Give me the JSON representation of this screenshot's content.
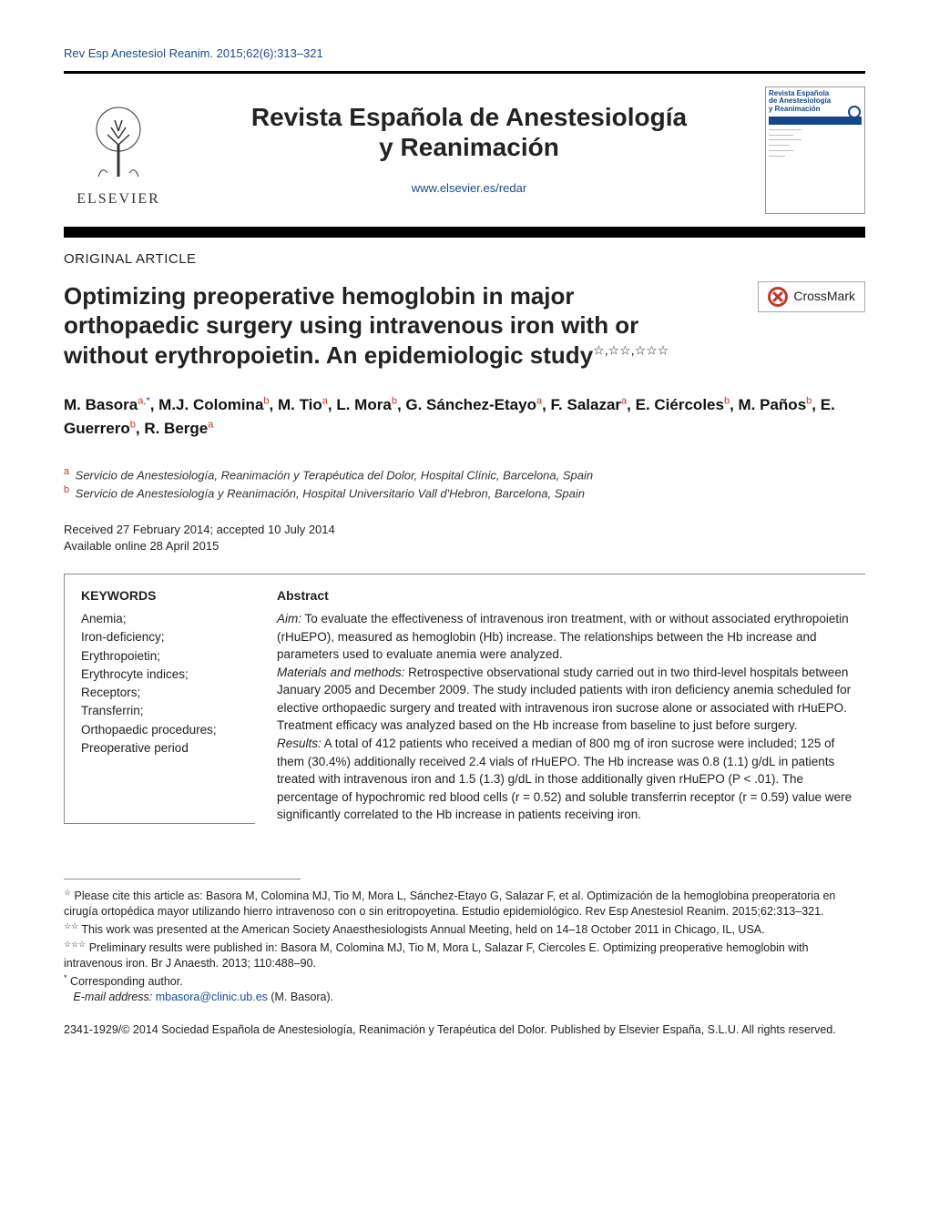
{
  "citation": "Rev Esp Anestesiol Reanim. 2015;62(6):313–321",
  "publisher_word": "ELSEVIER",
  "journal_title_line1": "Revista Española de Anestesiología",
  "journal_title_line2": "y Reanimación",
  "journal_url": "www.elsevier.es/redar",
  "cover": {
    "title_line1": "Revista Española",
    "title_line2": "de Anestesiología",
    "title_line3": "y Reanimación"
  },
  "article_type": "ORIGINAL ARTICLE",
  "article_title_main": "Optimizing preoperative hemoglobin in major orthopaedic surgery using intravenous iron with or without erythropoietin. An epidemiologic study",
  "title_sup": "☆,☆☆,☆☆☆",
  "crossmark_label": "CrossMark",
  "authors_html": "M. Basora<sup class='affsup'>a,</sup><sup>*</sup>, M.J. Colomina<sup class='affsup'>b</sup>, M. Tio<sup class='affsup'>a</sup>, L. Mora<sup class='affsup'>b</sup>, G. Sánchez-Etayo<sup class='affsup'>a</sup>, F. Salazar<sup class='affsup'>a</sup>, E. Ciércoles<sup class='affsup'>b</sup>, M. Paños<sup class='affsup'>b</sup>, E. Guerrero<sup class='affsup'>b</sup>, R. Berge<sup class='affsup'>a</sup>",
  "affiliations": [
    {
      "mark": "a",
      "text": "Servicio de Anestesiología, Reanimación y Terapéutica del Dolor, Hospital Clínic, Barcelona, Spain"
    },
    {
      "mark": "b",
      "text": "Servicio de Anestesiología y Reanimación, Hospital Universitario Vall d'Hebron, Barcelona, Spain"
    }
  ],
  "history_line1": "Received 27 February 2014; accepted 10 July 2014",
  "history_line2": "Available online 28 April 2015",
  "keywords_heading": "KEYWORDS",
  "keywords": [
    "Anemia;",
    "Iron-deficiency;",
    "Erythropoietin;",
    "Erythrocyte indices;",
    "Receptors;",
    "Transferrin;",
    "Orthopaedic procedures;",
    "Preoperative period"
  ],
  "abstract_heading": "Abstract",
  "abstract": {
    "aim_label": "Aim:",
    "aim": " To evaluate the effectiveness of intravenous iron treatment, with or without associated erythropoietin (rHuEPO), measured as hemoglobin (Hb) increase. The relationships between the Hb increase and parameters used to evaluate anemia were analyzed.",
    "mm_label": "Materials and methods:",
    "mm": " Retrospective observational study carried out in two third-level hospitals between January 2005 and December 2009. The study included patients with iron deficiency anemia scheduled for elective orthopaedic surgery and treated with intravenous iron sucrose alone or associated with rHuEPO. Treatment efficacy was analyzed based on the Hb increase from baseline to just before surgery.",
    "results_label": "Results:",
    "results": " A total of 412 patients who received a median of 800 mg of iron sucrose were included; 125 of them (30.4%) additionally received 2.4 vials of rHuEPO. The Hb increase was 0.8 (1.1) g/dL in patients treated with intravenous iron and 1.5 (1.3) g/dL in those additionally given rHuEPO (P < .01). The percentage of hypochromic red blood cells (r = 0.52) and soluble transferrin receptor (r = 0.59) value were significantly correlated to the Hb increase in patients receiving iron."
  },
  "footnotes": {
    "n1_mark": "☆",
    "n1": " Please cite this article as: Basora M, Colomina MJ, Tio M, Mora L, Sánchez-Etayo G, Salazar F, et al. Optimización de la hemoglobina preoperatoria en cirugía ortopédica mayor utilizando hierro intravenoso con o sin eritropoyetina. Estudio epidemiológico. Rev Esp Anestesiol Reanim. 2015;62:313–321.",
    "n2_mark": "☆☆",
    "n2": " This work was presented at the American Society Anaesthesiologists Annual Meeting, held on 14–18 October 2011 in Chicago, IL, USA.",
    "n3_mark": "☆☆☆",
    "n3": " Preliminary results were published in: Basora M, Colomina MJ, Tio M, Mora L, Salazar F, Ciercoles E. Optimizing preoperative hemoglobin with intravenous iron. Br J Anaesth. 2013; 110:488–90.",
    "corr_mark": "*",
    "corr": " Corresponding author.",
    "email_label": "E-mail address: ",
    "email": "mbasora@clinic.ub.es",
    "email_who": " (M. Basora)."
  },
  "copyright": "2341-1929/© 2014 Sociedad Española de Anestesiología, Reanimación y Terapéutica del Dolor. Published by Elsevier España, S.L.U. All rights reserved.",
  "colors": {
    "link": "#1a4b8c",
    "affsup": "#c0392b",
    "rule": "#000000",
    "text": "#222222"
  }
}
